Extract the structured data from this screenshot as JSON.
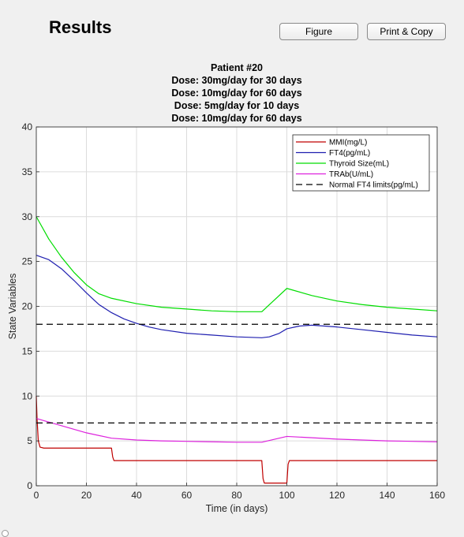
{
  "header": {
    "title": "Results"
  },
  "buttons": {
    "figure_label": "Figure",
    "print_copy_label": "Print & Copy"
  },
  "chart_data": {
    "type": "line",
    "title_lines": [
      "Patient #20",
      "Dose: 30mg/day for 30 days",
      "Dose: 10mg/day for 60 days",
      "Dose: 5mg/day for 10 days",
      "Dose: 10mg/day for 60 days"
    ],
    "xlabel": "Time (in days)",
    "ylabel": "State Variables",
    "xlim": [
      0,
      160
    ],
    "ylim": [
      0,
      40
    ],
    "xticks": [
      0,
      20,
      40,
      60,
      80,
      100,
      120,
      140,
      160
    ],
    "yticks": [
      0,
      5,
      10,
      15,
      20,
      25,
      30,
      35,
      40
    ],
    "grid": true,
    "legend_position": "top-right",
    "series": [
      {
        "name": "MMI(mg/L)",
        "color": "#c00000",
        "dash": "solid",
        "x": [
          0,
          0.3,
          0.8,
          1.5,
          3,
          30,
          30.5,
          31,
          90,
          90.5,
          91,
          100,
          100.5,
          101,
          160
        ],
        "y": [
          10,
          7.5,
          5,
          4.3,
          4.2,
          4.2,
          3.2,
          2.8,
          2.8,
          0.8,
          0.3,
          0.3,
          2.4,
          2.8,
          2.8
        ]
      },
      {
        "name": "FT4(pg/mL)",
        "color": "#1f1fb0",
        "dash": "solid",
        "x": [
          0,
          5,
          10,
          15,
          20,
          25,
          30,
          35,
          40,
          45,
          50,
          60,
          70,
          80,
          90,
          93,
          97,
          100,
          105,
          110,
          120,
          130,
          140,
          150,
          160
        ],
        "y": [
          25.7,
          25.2,
          24.2,
          22.9,
          21.5,
          20.2,
          19.3,
          18.6,
          18.1,
          17.7,
          17.4,
          17.0,
          16.8,
          16.6,
          16.5,
          16.6,
          17.0,
          17.5,
          17.8,
          17.9,
          17.7,
          17.4,
          17.1,
          16.8,
          16.6
        ]
      },
      {
        "name": "Thyroid Size(mL)",
        "color": "#00dd00",
        "dash": "solid",
        "x": [
          0,
          5,
          10,
          15,
          20,
          25,
          30,
          40,
          50,
          60,
          70,
          80,
          90,
          100,
          110,
          120,
          130,
          140,
          150,
          160
        ],
        "y": [
          30.0,
          27.5,
          25.5,
          23.8,
          22.4,
          21.4,
          20.9,
          20.3,
          19.9,
          19.7,
          19.5,
          19.4,
          19.4,
          22.0,
          21.2,
          20.6,
          20.2,
          19.9,
          19.7,
          19.5
        ]
      },
      {
        "name": "TRAb(U/mL)",
        "color": "#dd22dd",
        "dash": "solid",
        "x": [
          0,
          10,
          20,
          30,
          40,
          50,
          60,
          70,
          80,
          90,
          100,
          110,
          120,
          130,
          140,
          150,
          160
        ],
        "y": [
          7.5,
          6.7,
          5.9,
          5.3,
          5.1,
          5.0,
          4.95,
          4.9,
          4.85,
          4.85,
          5.5,
          5.35,
          5.2,
          5.1,
          5.0,
          4.95,
          4.9
        ]
      },
      {
        "name": "Normal FT4 limits(pg/mL)",
        "color": "#000000",
        "dash": "dashed",
        "segments": [
          {
            "x": [
              0,
              160
            ],
            "y": [
              18,
              18
            ]
          },
          {
            "x": [
              0,
              160
            ],
            "y": [
              7,
              7
            ]
          }
        ]
      }
    ]
  }
}
